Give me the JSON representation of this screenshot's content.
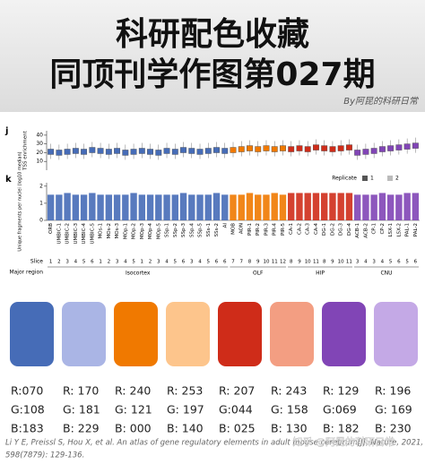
{
  "header": {
    "title_line1": "科研配色收藏",
    "title_line2": "同顶刊学作图第027期",
    "byline": "By阿昆的科研日常"
  },
  "figure": {
    "panel_j": "j",
    "panel_k": "k",
    "tss_label": "TSS enrichment",
    "fragments_label": "Unique fragments per nuclei (log10 median)",
    "tss_ylim": [
      0,
      45
    ],
    "tss_yticks": [
      10,
      20,
      30,
      40
    ],
    "frag_ylim": [
      0,
      2.2
    ],
    "frag_yticks": [
      0,
      1,
      2
    ],
    "legend_title": "Replicate",
    "legend_items": [
      "1",
      "2"
    ],
    "slice_label": "Slice",
    "region_label": "Major region",
    "groups": [
      {
        "name": "Isocortex",
        "color": "#466cb7",
        "categories": [
          "ORB",
          "UMBIC-1",
          "UMBIC-2",
          "UMBIC-3",
          "UMBIC-4",
          "UMBIC-5",
          "MOs-1",
          "MOs-2",
          "MOs-3",
          "MOp-1",
          "MOp-2",
          "MOp-3",
          "MOp-4",
          "MOp-5",
          "SSp-1",
          "SSp-2",
          "SSp-3",
          "SSp-4",
          "SSp-5",
          "SSs-1",
          "SSs-2",
          "AI"
        ],
        "slices": [
          "1",
          "2",
          "3",
          "4",
          "5",
          "6",
          "1",
          "2",
          "3",
          "4",
          "5",
          "1",
          "2",
          "3",
          "4",
          "5",
          "6",
          "3",
          "4",
          "5",
          "6",
          "6"
        ],
        "tss": [
          21,
          20,
          21,
          22,
          21,
          23,
          22,
          21,
          22,
          20,
          21,
          22,
          21,
          20,
          22,
          21,
          23,
          22,
          21,
          22,
          23,
          22
        ],
        "fragments": [
          1.5,
          1.5,
          1.6,
          1.5,
          1.5,
          1.6,
          1.5,
          1.5,
          1.5,
          1.5,
          1.6,
          1.5,
          1.5,
          1.5,
          1.5,
          1.5,
          1.6,
          1.5,
          1.5,
          1.5,
          1.6,
          1.5
        ]
      },
      {
        "name": "OLF",
        "color": "#f07900",
        "categories": [
          "MOB",
          "AON",
          "PIR-1",
          "PIR-2",
          "PIR-3",
          "PIR-4",
          "PIR-5"
        ],
        "slices": [
          "7",
          "7",
          "8",
          "9",
          "10",
          "11",
          "12"
        ],
        "tss": [
          23,
          24,
          25,
          24,
          25,
          24,
          25
        ],
        "fragments": [
          1.5,
          1.5,
          1.6,
          1.5,
          1.5,
          1.6,
          1.5
        ]
      },
      {
        "name": "HIP",
        "color": "#cf2c19",
        "categories": [
          "CA-1",
          "CA-2",
          "CA-3",
          "CA-4",
          "DG-1",
          "DG-2",
          "DG-3",
          "DG-4"
        ],
        "slices": [
          "8",
          "9",
          "10",
          "11",
          "8",
          "9",
          "10",
          "11"
        ],
        "tss": [
          24,
          25,
          24,
          26,
          25,
          24,
          25,
          26
        ],
        "fragments": [
          1.6,
          1.6,
          1.6,
          1.6,
          1.6,
          1.6,
          1.6,
          1.6
        ]
      },
      {
        "name": "CNU",
        "color": "#8145b6",
        "categories": [
          "ACB-1",
          "ACB-2",
          "CP-1",
          "CP-2",
          "LSX-1",
          "LSX-2",
          "PAL-1",
          "PAL-2"
        ],
        "slices": [
          "3",
          "4",
          "3",
          "4",
          "5",
          "6",
          "5",
          "6"
        ],
        "tss": [
          20,
          21,
          22,
          24,
          25,
          26,
          27,
          28
        ],
        "fragments": [
          1.5,
          1.5,
          1.5,
          1.6,
          1.5,
          1.5,
          1.6,
          1.6
        ]
      }
    ]
  },
  "swatches": [
    {
      "color": "#466cb7",
      "r": "R:070",
      "g": "G:108",
      "b": "B:183"
    },
    {
      "color": "#aab5e5",
      "r": "R: 170",
      "g": "G: 181",
      "b": "B: 229"
    },
    {
      "color": "#f07900",
      "r": "R: 240",
      "g": "G: 121",
      "b": "B: 000"
    },
    {
      "color": "#fdc58c",
      "r": "R: 253",
      "g": "G: 197",
      "b": "B: 140"
    },
    {
      "color": "#cf2c19",
      "r": "R: 207",
      "g": "G:044",
      "b": "B: 025"
    },
    {
      "color": "#f39e82",
      "r": "R: 243",
      "g": "G: 158",
      "b": "B: 130"
    },
    {
      "color": "#8145b6",
      "r": "R: 129",
      "g": "G:069",
      "b": "B: 182"
    },
    {
      "color": "#c4a9e6",
      "r": "R: 196",
      "g": "G: 169",
      "b": "B: 230"
    }
  ],
  "citation": {
    "line1": "Li Y E, Preissl S, Hou X, et al. An atlas of gene regulatory elements in adult mouse cerebrum[J]. Nature, 2021,",
    "line2": "598(7879): 129-136."
  },
  "watermark": "知乎 @阿昆的科研日常"
}
